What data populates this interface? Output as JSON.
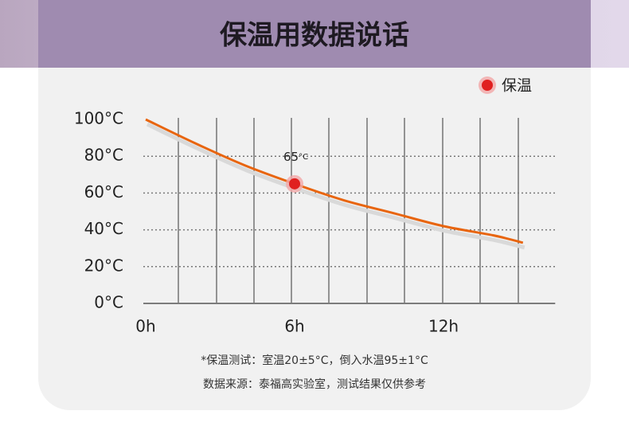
{
  "chart_data": {
    "type": "line",
    "title": "保温用数据说话",
    "x": [
      0,
      2,
      4,
      6,
      8,
      10,
      12,
      14,
      15.2
    ],
    "series": [
      {
        "name": "保温",
        "color": "#e8650f",
        "values": [
          100,
          87,
          75,
          65,
          56,
          49,
          42,
          37,
          33
        ]
      }
    ],
    "xlim": [
      0,
      16.5
    ],
    "xticks": [
      {
        "value": 0,
        "label": "0h"
      },
      {
        "value": 6,
        "label": "6h"
      },
      {
        "value": 12,
        "label": "12h"
      }
    ],
    "ylim": [
      0,
      100
    ],
    "yticks": [
      {
        "value": 0,
        "label": "0°C"
      },
      {
        "value": 20,
        "label": "20°C"
      },
      {
        "value": 40,
        "label": "40°C"
      },
      {
        "value": 60,
        "label": "60°C"
      },
      {
        "value": 80,
        "label": "80°C"
      },
      {
        "value": 100,
        "label": "100°C"
      }
    ],
    "grid": true,
    "legend": "top-right",
    "marker_color": "#e02020",
    "annotation": {
      "x": 6,
      "y": 65,
      "text": "65",
      "unit": "°C"
    },
    "notes": [
      "*保温测试：室温20±5°C，倒入水温95±1°C",
      "数据来源：泰福高实验室，测试结果仅供参考"
    ]
  }
}
